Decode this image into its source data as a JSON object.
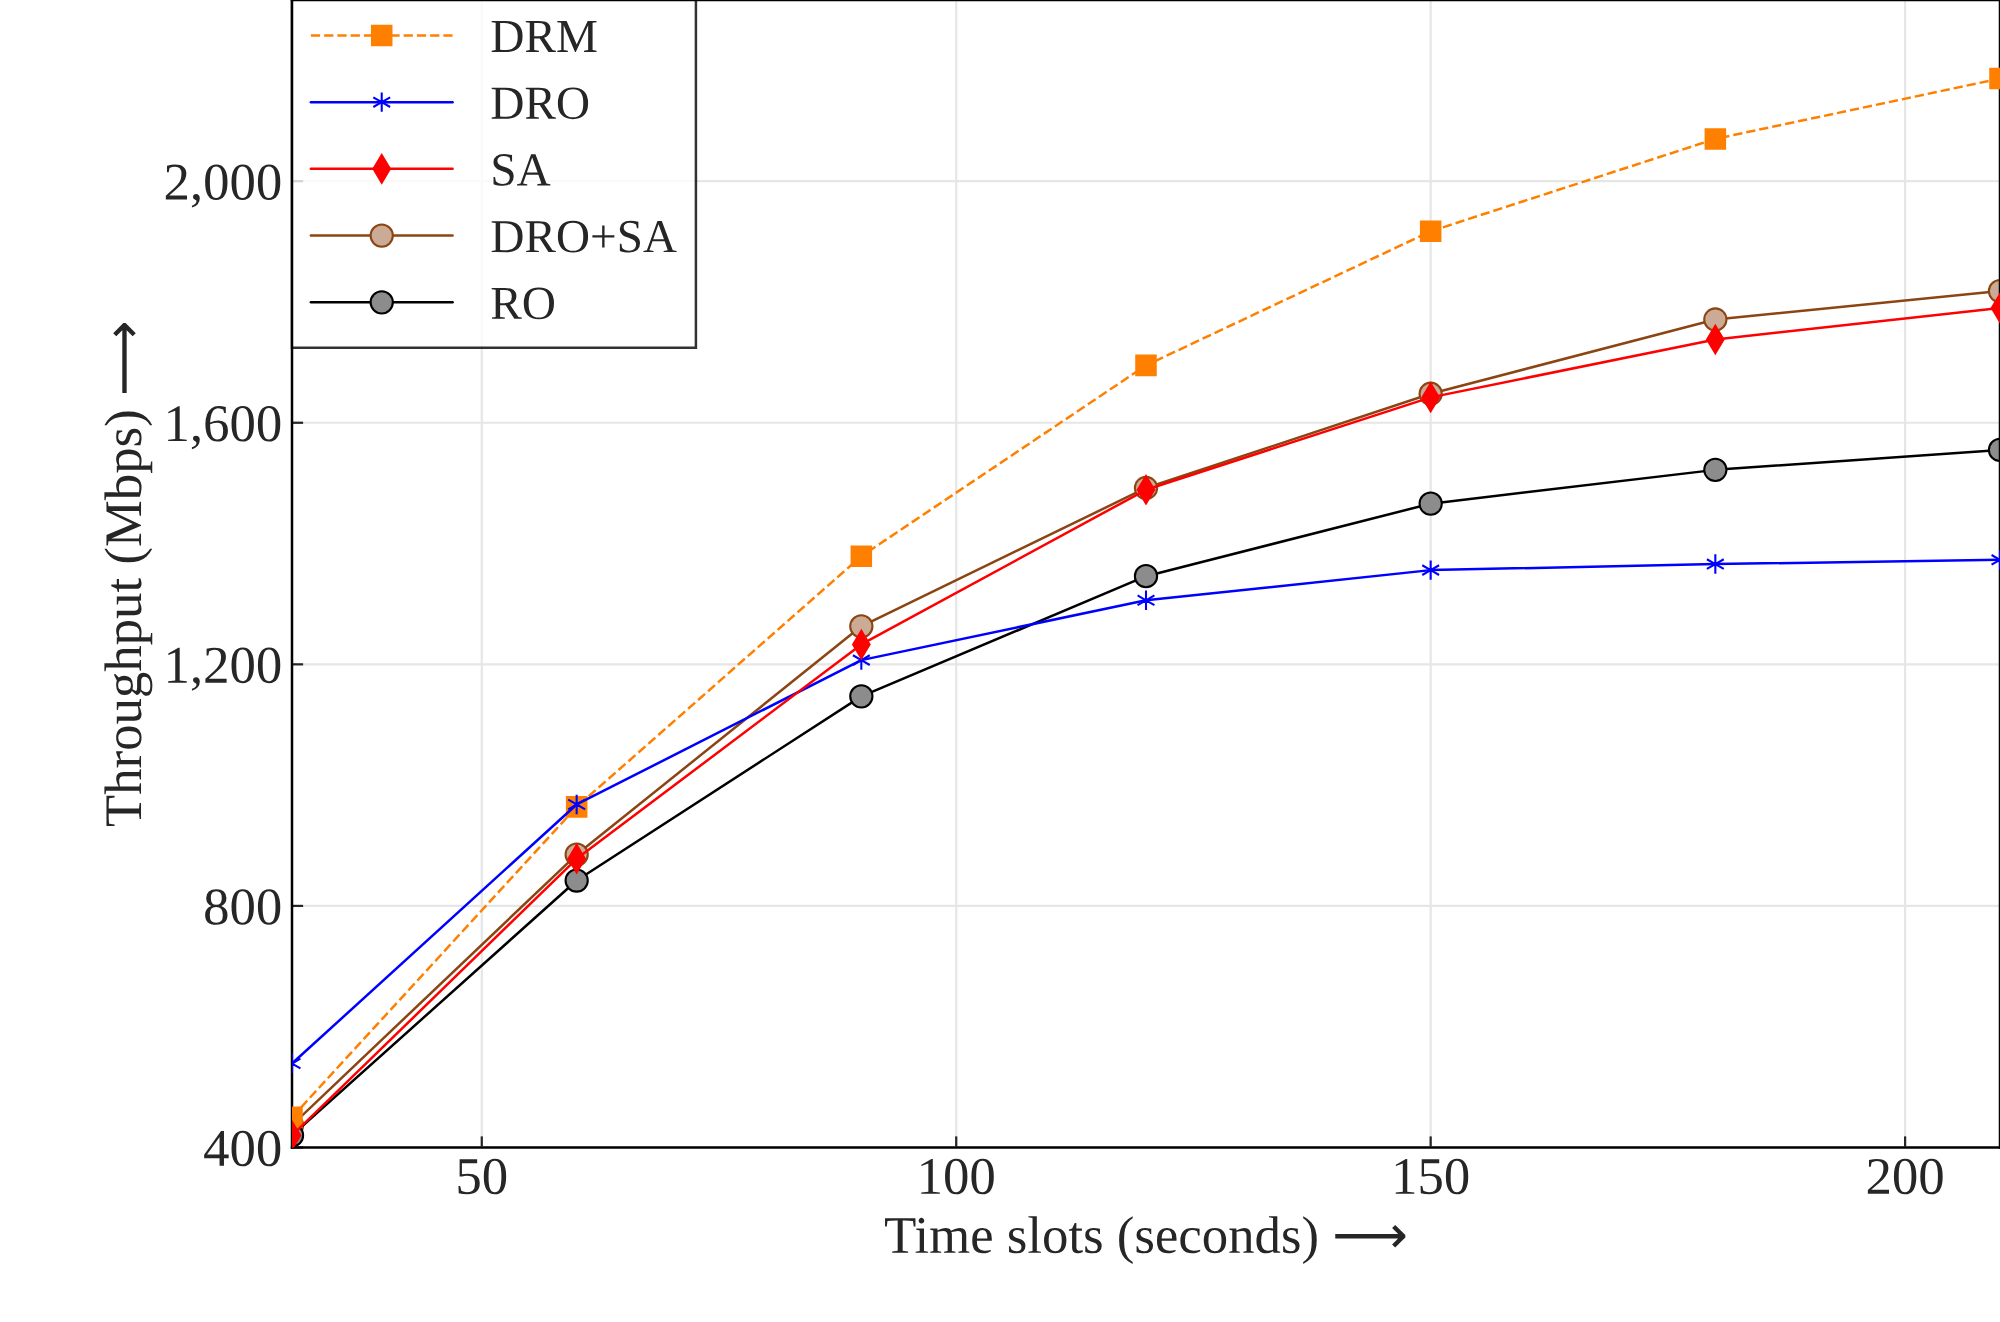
{
  "chart_data": {
    "type": "line",
    "xlabel": "Time slots (seconds) ⟶",
    "ylabel": "Throughput (Mbps) ⟶",
    "x": [
      30,
      60,
      90,
      120,
      150,
      180,
      210
    ],
    "xlim": [
      30,
      210
    ],
    "xticks": [
      50,
      100,
      150,
      200
    ],
    "ylim": [
      400,
      2300
    ],
    "yticks": [
      400,
      800,
      {
        "value": 1200,
        "label": "1,200"
      },
      {
        "value": 1600,
        "label": "1,600"
      },
      {
        "value": 2000,
        "label": "2,000"
      }
    ],
    "grid": true,
    "legend": "top left",
    "series": [
      {
        "name": "DRM",
        "color": "#ff8000",
        "marker": "square",
        "line_style": "dashed",
        "values": [
          450,
          964,
          1379,
          1695,
          1917,
          2070,
          2170
        ]
      },
      {
        "name": "DRO",
        "color": "#0000ff",
        "marker": "cross",
        "line_style": "solid",
        "values": [
          539,
          968,
          1207,
          1306,
          1356,
          1366,
          1373
        ]
      },
      {
        "name": "SA",
        "color": "#ff0000",
        "marker": "diamond",
        "line_style": "solid",
        "values": [
          420,
          878,
          1233,
          1489,
          1642,
          1738,
          1790
        ]
      },
      {
        "name": "DRO+SA",
        "color": "#8b4513",
        "marker": "circle",
        "line_style": "solid",
        "values": [
          437,
          885,
          1263,
          1492,
          1648,
          1771,
          1818
        ]
      },
      {
        "name": "RO",
        "color": "#000000",
        "marker": "circle",
        "line_style": "solid",
        "values": [
          420,
          842,
          1147,
          1346,
          1466,
          1522,
          1555
        ]
      }
    ]
  }
}
